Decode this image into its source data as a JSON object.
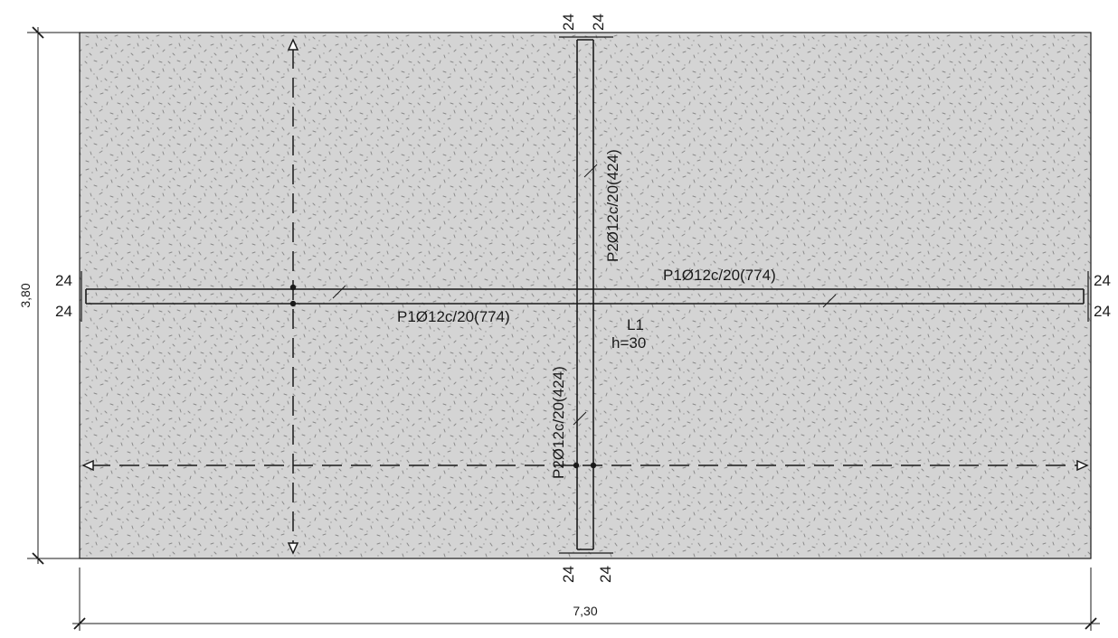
{
  "drawing": {
    "slab": {
      "name": "L1",
      "thickness": "h=30",
      "fill_color": "#d4d4d4",
      "speckle_color": "#8a8a8a"
    },
    "dimensions": {
      "width": "7,30",
      "height": "3,80"
    },
    "bars": {
      "horizontal_top_label": "P1Ø12c/20(774)",
      "horizontal_bottom_label": "P1Ø12c/20(774)",
      "vertical_upper_label": "P2Ø12c/20(424)",
      "vertical_lower_label": "P2Ø12c/20(424)"
    },
    "hooks": {
      "left_top": "24",
      "left_bottom": "24",
      "right_top": "24",
      "right_bottom": "24",
      "top_left": "24",
      "top_right": "24",
      "bottom_left": "24",
      "bottom_right": "24"
    },
    "colors": {
      "line": "#1a1a1a",
      "background": "#ffffff"
    }
  }
}
